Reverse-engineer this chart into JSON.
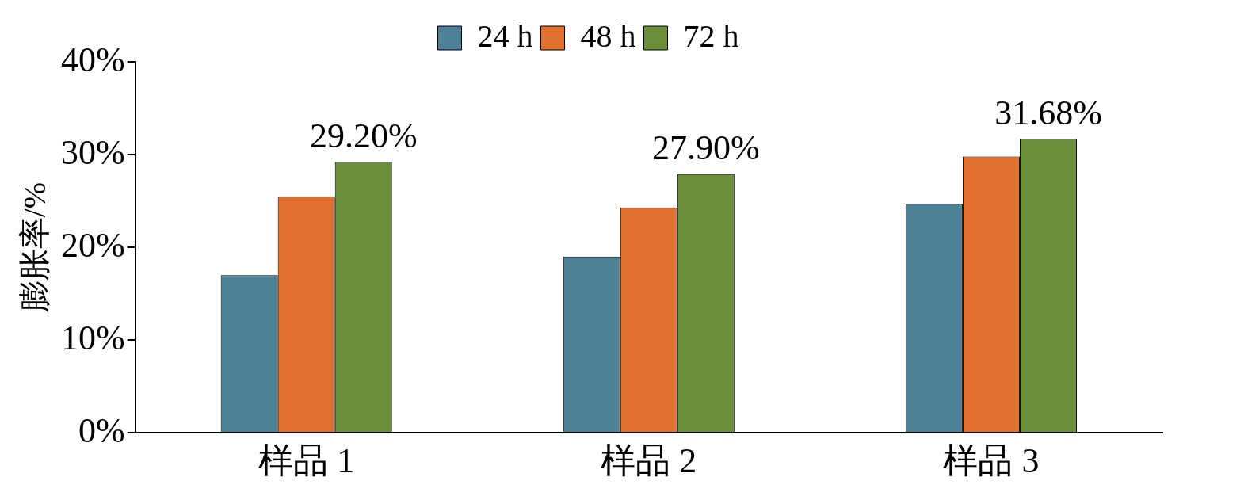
{
  "chart_data": {
    "type": "bar",
    "ylabel": "膨胀率/%",
    "categories": [
      "样品 1",
      "样品 2",
      "样品 3"
    ],
    "series": [
      {
        "name": "24 h",
        "color": "#4e8097",
        "values": [
          17,
          19,
          24.7
        ]
      },
      {
        "name": "48 h",
        "color": "#e0702e",
        "values": [
          25.5,
          24.3,
          29.8
        ]
      },
      {
        "name": "72 h",
        "color": "#6b8e3a",
        "values": [
          29.2,
          27.9,
          31.68
        ],
        "value_labels": [
          "29.20%",
          "27.90%",
          "31.68%"
        ]
      }
    ],
    "ylim": [
      0,
      40
    ],
    "yticks": [
      {
        "value": 0,
        "label": "0%"
      },
      {
        "value": 10,
        "label": "10%"
      },
      {
        "value": 20,
        "label": "20%"
      },
      {
        "value": 30,
        "label": "30%"
      },
      {
        "value": 40,
        "label": "40%"
      }
    ],
    "grid": false,
    "legend": "top"
  }
}
